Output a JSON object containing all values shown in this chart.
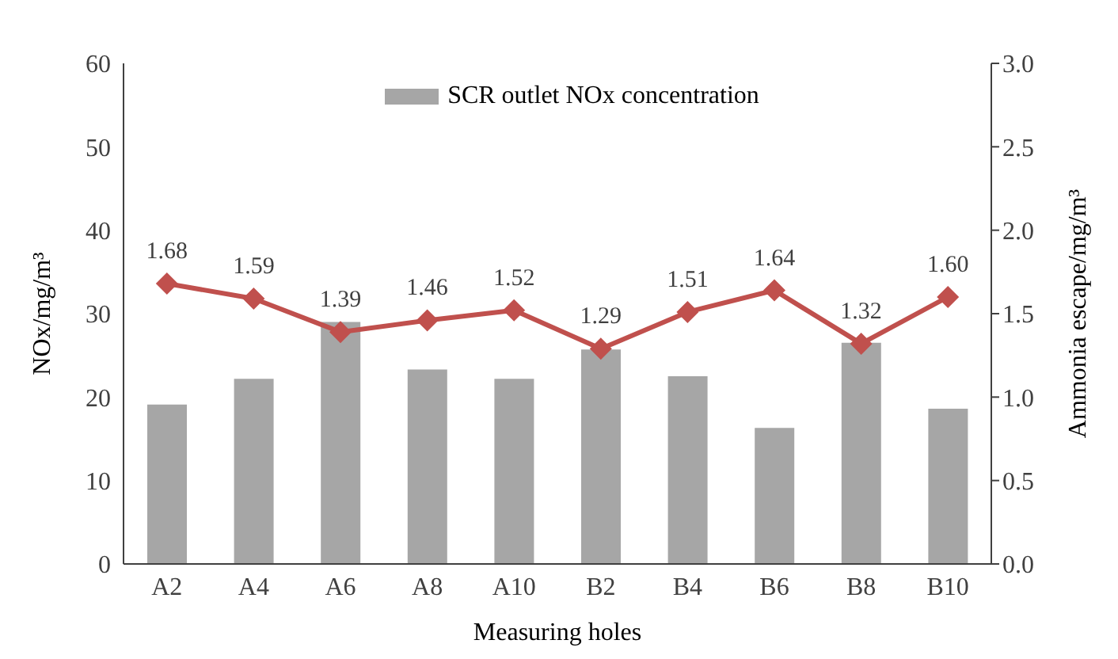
{
  "chart_data": {
    "type": "bar",
    "xlabel": "Measuring holes",
    "ylabel": "NOx/mg/m³",
    "y2label": "Ammonia escape/mg/m³",
    "categories": [
      "A2",
      "A4",
      "A6",
      "A8",
      "A10",
      "B2",
      "B4",
      "B6",
      "B8",
      "B10"
    ],
    "series": [
      {
        "name": "SCR outlet NOx concentration",
        "color": "#a6a6a6",
        "values": [
          19.1,
          22.2,
          29.0,
          23.3,
          22.2,
          25.7,
          22.5,
          16.3,
          26.5,
          18.6
        ]
      },
      {
        "type": "line",
        "axis": "y2",
        "color": "#c0504d",
        "marker": "diamond",
        "values": [
          1.68,
          1.59,
          1.39,
          1.46,
          1.52,
          1.29,
          1.51,
          1.64,
          1.32,
          1.6
        ],
        "value_labels": [
          "1.68",
          "1.59",
          "1.39",
          "1.46",
          "1.52",
          "1.29",
          "1.51",
          "1.64",
          "1.32",
          "1.60"
        ]
      }
    ],
    "ylim": [
      0,
      60
    ],
    "yticks": [
      0,
      10,
      20,
      30,
      40,
      50,
      60
    ],
    "y2lim": [
      0,
      3
    ],
    "y2ticks": [
      {
        "value": 0,
        "label": "0.0"
      },
      {
        "value": 0.5,
        "label": "0.5"
      },
      {
        "value": 1,
        "label": "1.0"
      },
      {
        "value": 1.5,
        "label": "1.5"
      },
      {
        "value": 2,
        "label": "2.0"
      },
      {
        "value": 2.5,
        "label": "2.5"
      },
      {
        "value": 3,
        "label": "3.0"
      }
    ],
    "grid": false,
    "legend": "top"
  }
}
